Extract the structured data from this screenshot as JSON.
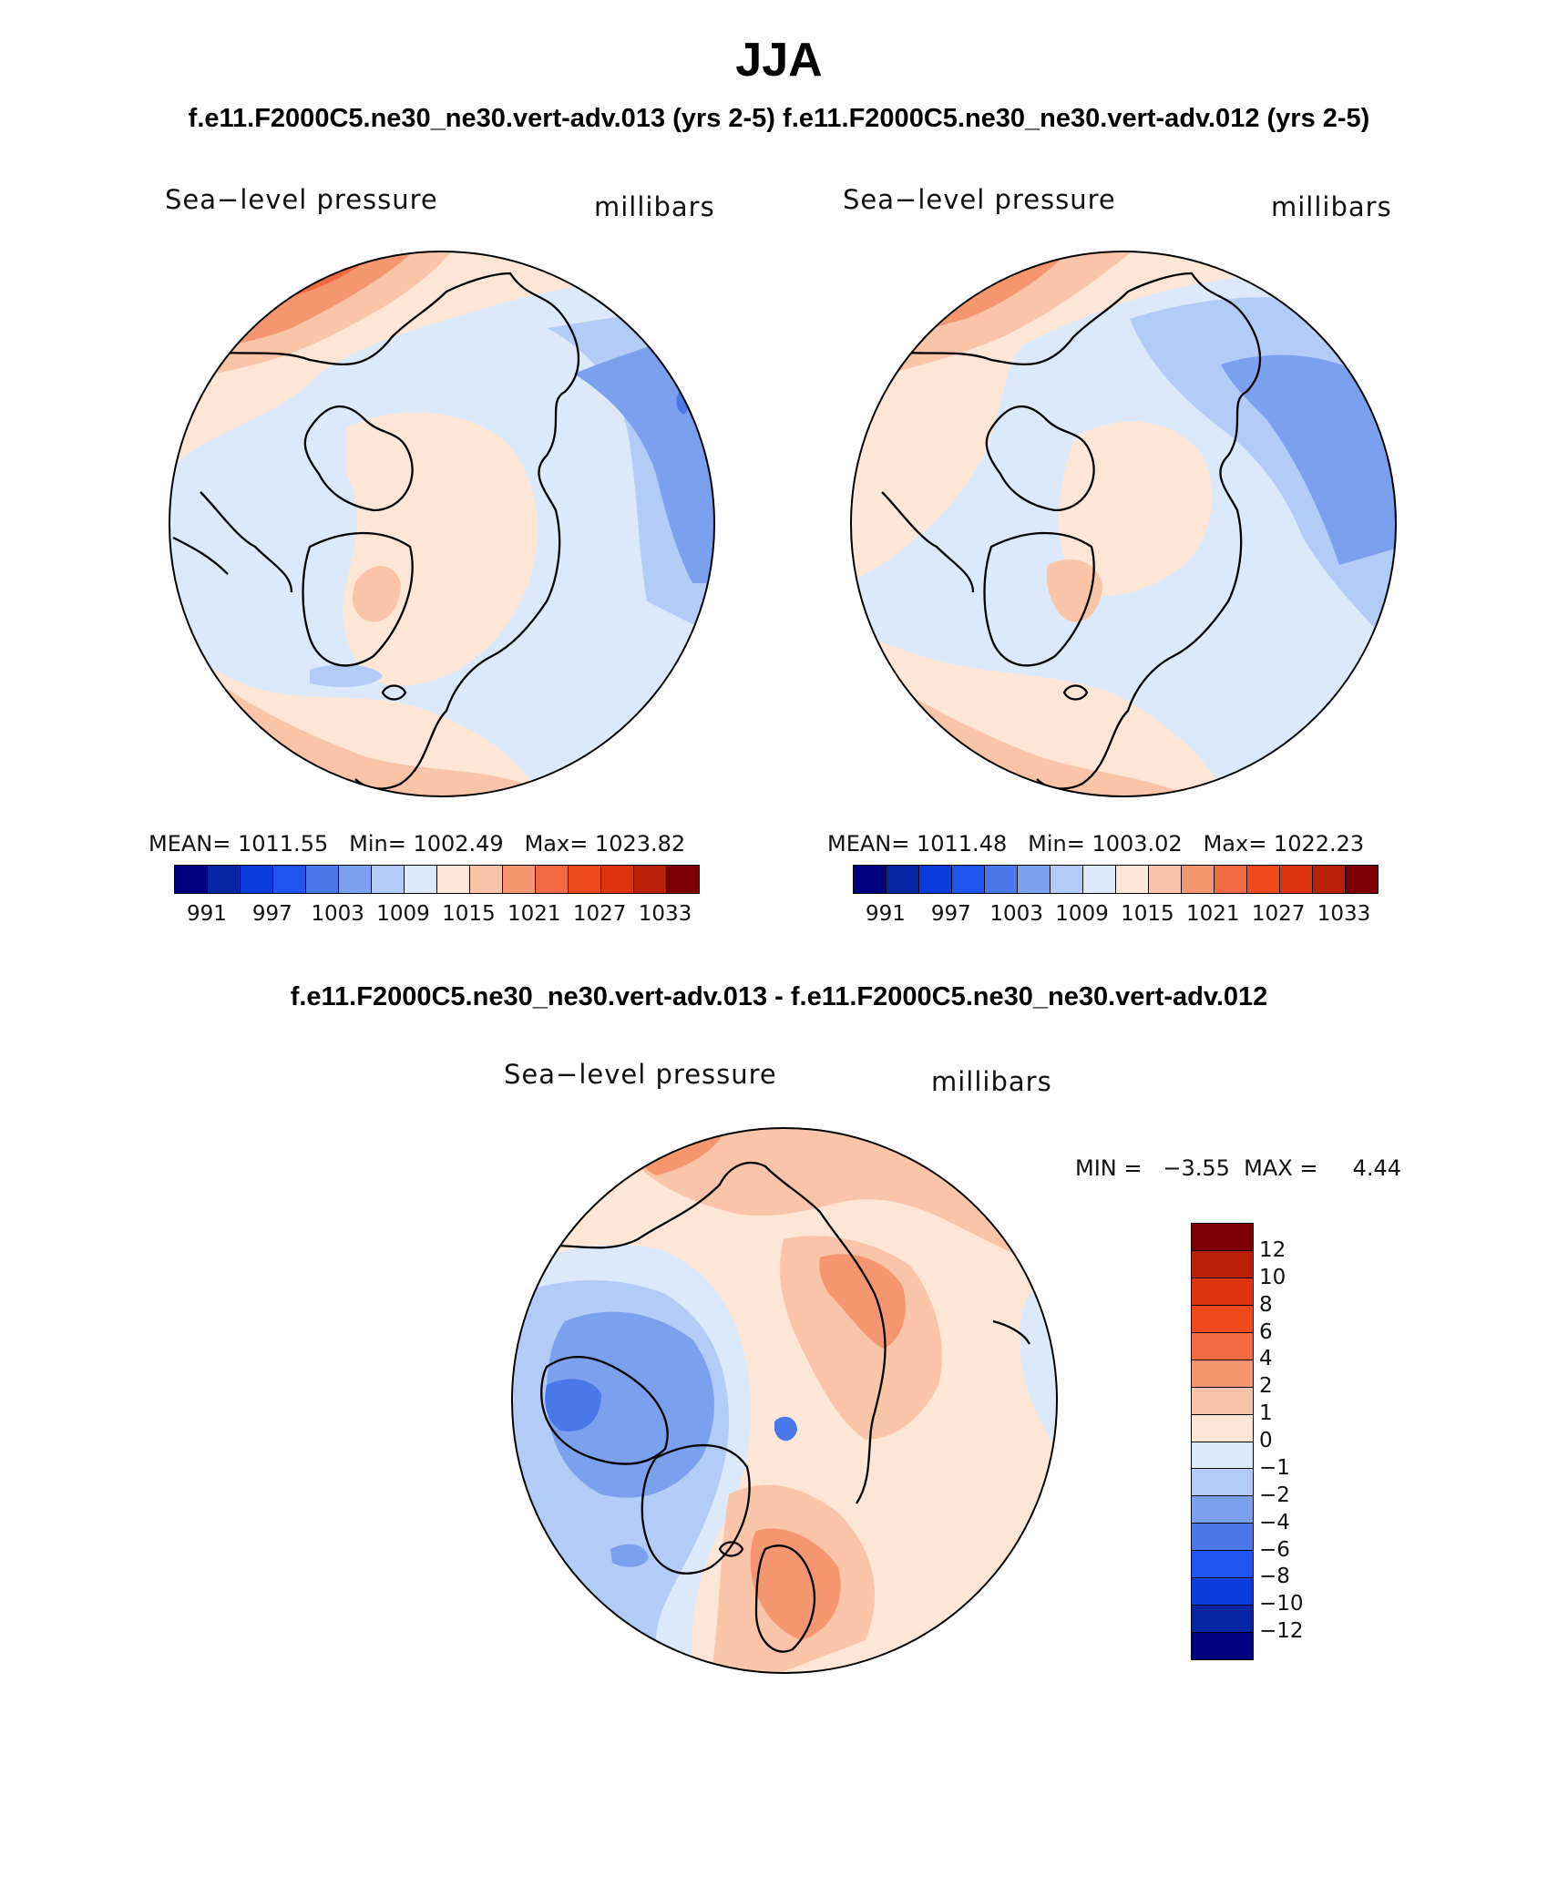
{
  "figure": {
    "title": "JJA",
    "subtitle_left": "f.e11.F2000C5.ne30_ne30.vert-adv.013 (yrs 2-5)",
    "subtitle_right": "f.e11.F2000C5.ne30_ne30.vert-adv.012 (yrs 2-5)",
    "diff_title": "f.e11.F2000C5.ne30_ne30.vert-adv.013 - f.e11.F2000C5.ne30_ne30.vert-adv.012"
  },
  "panels": {
    "left": {
      "variable": "Sea−level pressure",
      "units": "millibars",
      "stats": "MEAN= 1011.55   Min= 1002.49   Max= 1023.82",
      "ticks": [
        "991",
        "997",
        "1003",
        "1009",
        "1015",
        "1021",
        "1027",
        "1033"
      ]
    },
    "right": {
      "variable": "Sea−level pressure",
      "units": "millibars",
      "stats": "MEAN= 1011.48   Min= 1003.02   Max= 1022.23",
      "ticks": [
        "991",
        "997",
        "1003",
        "1009",
        "1015",
        "1021",
        "1027",
        "1033"
      ]
    },
    "diff": {
      "variable": "Sea−level pressure",
      "units": "millibars",
      "stats": "MIN =   −3.55  MAX =     4.44",
      "ticks": [
        "12",
        "10",
        "8",
        "6",
        "4",
        "2",
        "1",
        "0",
        "−1",
        "−2",
        "−4",
        "−6",
        "−8",
        "−10",
        "−12"
      ]
    }
  },
  "colors": {
    "abs_scale": [
      "#00007f",
      "#0526a3",
      "#0a3ddb",
      "#1f55f0",
      "#4a78e8",
      "#7aa0ee",
      "#b2cbf7",
      "#dbe9fb",
      "#fde6d6",
      "#f9c4a8",
      "#f4966f",
      "#f26a41",
      "#ef4a1c",
      "#de3510",
      "#b82008",
      "#7c0003"
    ],
    "diff_scale": [
      "#7c0003",
      "#b82008",
      "#de3510",
      "#ef4a1c",
      "#f26a41",
      "#f4966f",
      "#f9c4a8",
      "#fde6d6",
      "#dbe9fb",
      "#b2cbf7",
      "#7aa0ee",
      "#4a78e8",
      "#1f55f0",
      "#0a3ddb",
      "#0526a3",
      "#00007f"
    ]
  }
}
